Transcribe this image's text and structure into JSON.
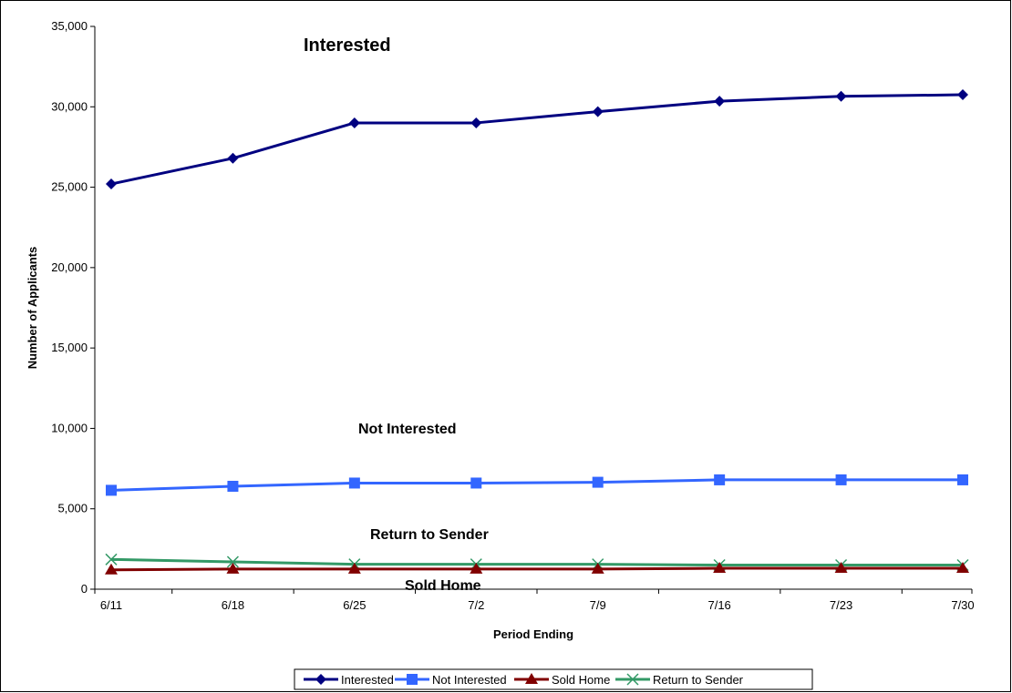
{
  "chart_data": {
    "type": "line",
    "title": "",
    "xlabel": "Period Ending",
    "ylabel": "Number of Applicants",
    "categories": [
      "6/11",
      "6/18",
      "6/25",
      "7/2",
      "7/9",
      "7/16",
      "7/23",
      "7/30"
    ],
    "ylim": [
      0,
      35000
    ],
    "yticks": [
      0,
      5000,
      10000,
      15000,
      20000,
      25000,
      30000,
      35000
    ],
    "ytick_labels": [
      "0",
      "5,000",
      "10,000",
      "15,000",
      "20,000",
      "25,000",
      "30,000",
      "35,000"
    ],
    "grid": false,
    "legend_position": "bottom",
    "series": [
      {
        "name": "Interested",
        "color": "#000080",
        "marker": "diamond",
        "values": [
          25200,
          26800,
          29000,
          29000,
          29700,
          30350,
          30650,
          30750
        ]
      },
      {
        "name": "Not Interested",
        "color": "#3366FF",
        "marker": "square",
        "values": [
          6150,
          6400,
          6600,
          6600,
          6650,
          6800,
          6800,
          6800
        ]
      },
      {
        "name": "Sold Home",
        "color": "#800000",
        "marker": "triangle",
        "values": [
          1200,
          1250,
          1250,
          1250,
          1250,
          1300,
          1300,
          1300
        ]
      },
      {
        "name": "Return to Sender",
        "color": "#339966",
        "marker": "x",
        "values": [
          1850,
          1700,
          1550,
          1550,
          1550,
          1500,
          1500,
          1500
        ]
      }
    ],
    "annotations": [
      {
        "text": "Interested",
        "series": "Interested"
      },
      {
        "text": "Not Interested",
        "series": "Not Interested"
      },
      {
        "text": "Return to Sender",
        "series": "Return to Sender"
      },
      {
        "text": "Sold Home",
        "series": "Sold Home"
      }
    ]
  }
}
